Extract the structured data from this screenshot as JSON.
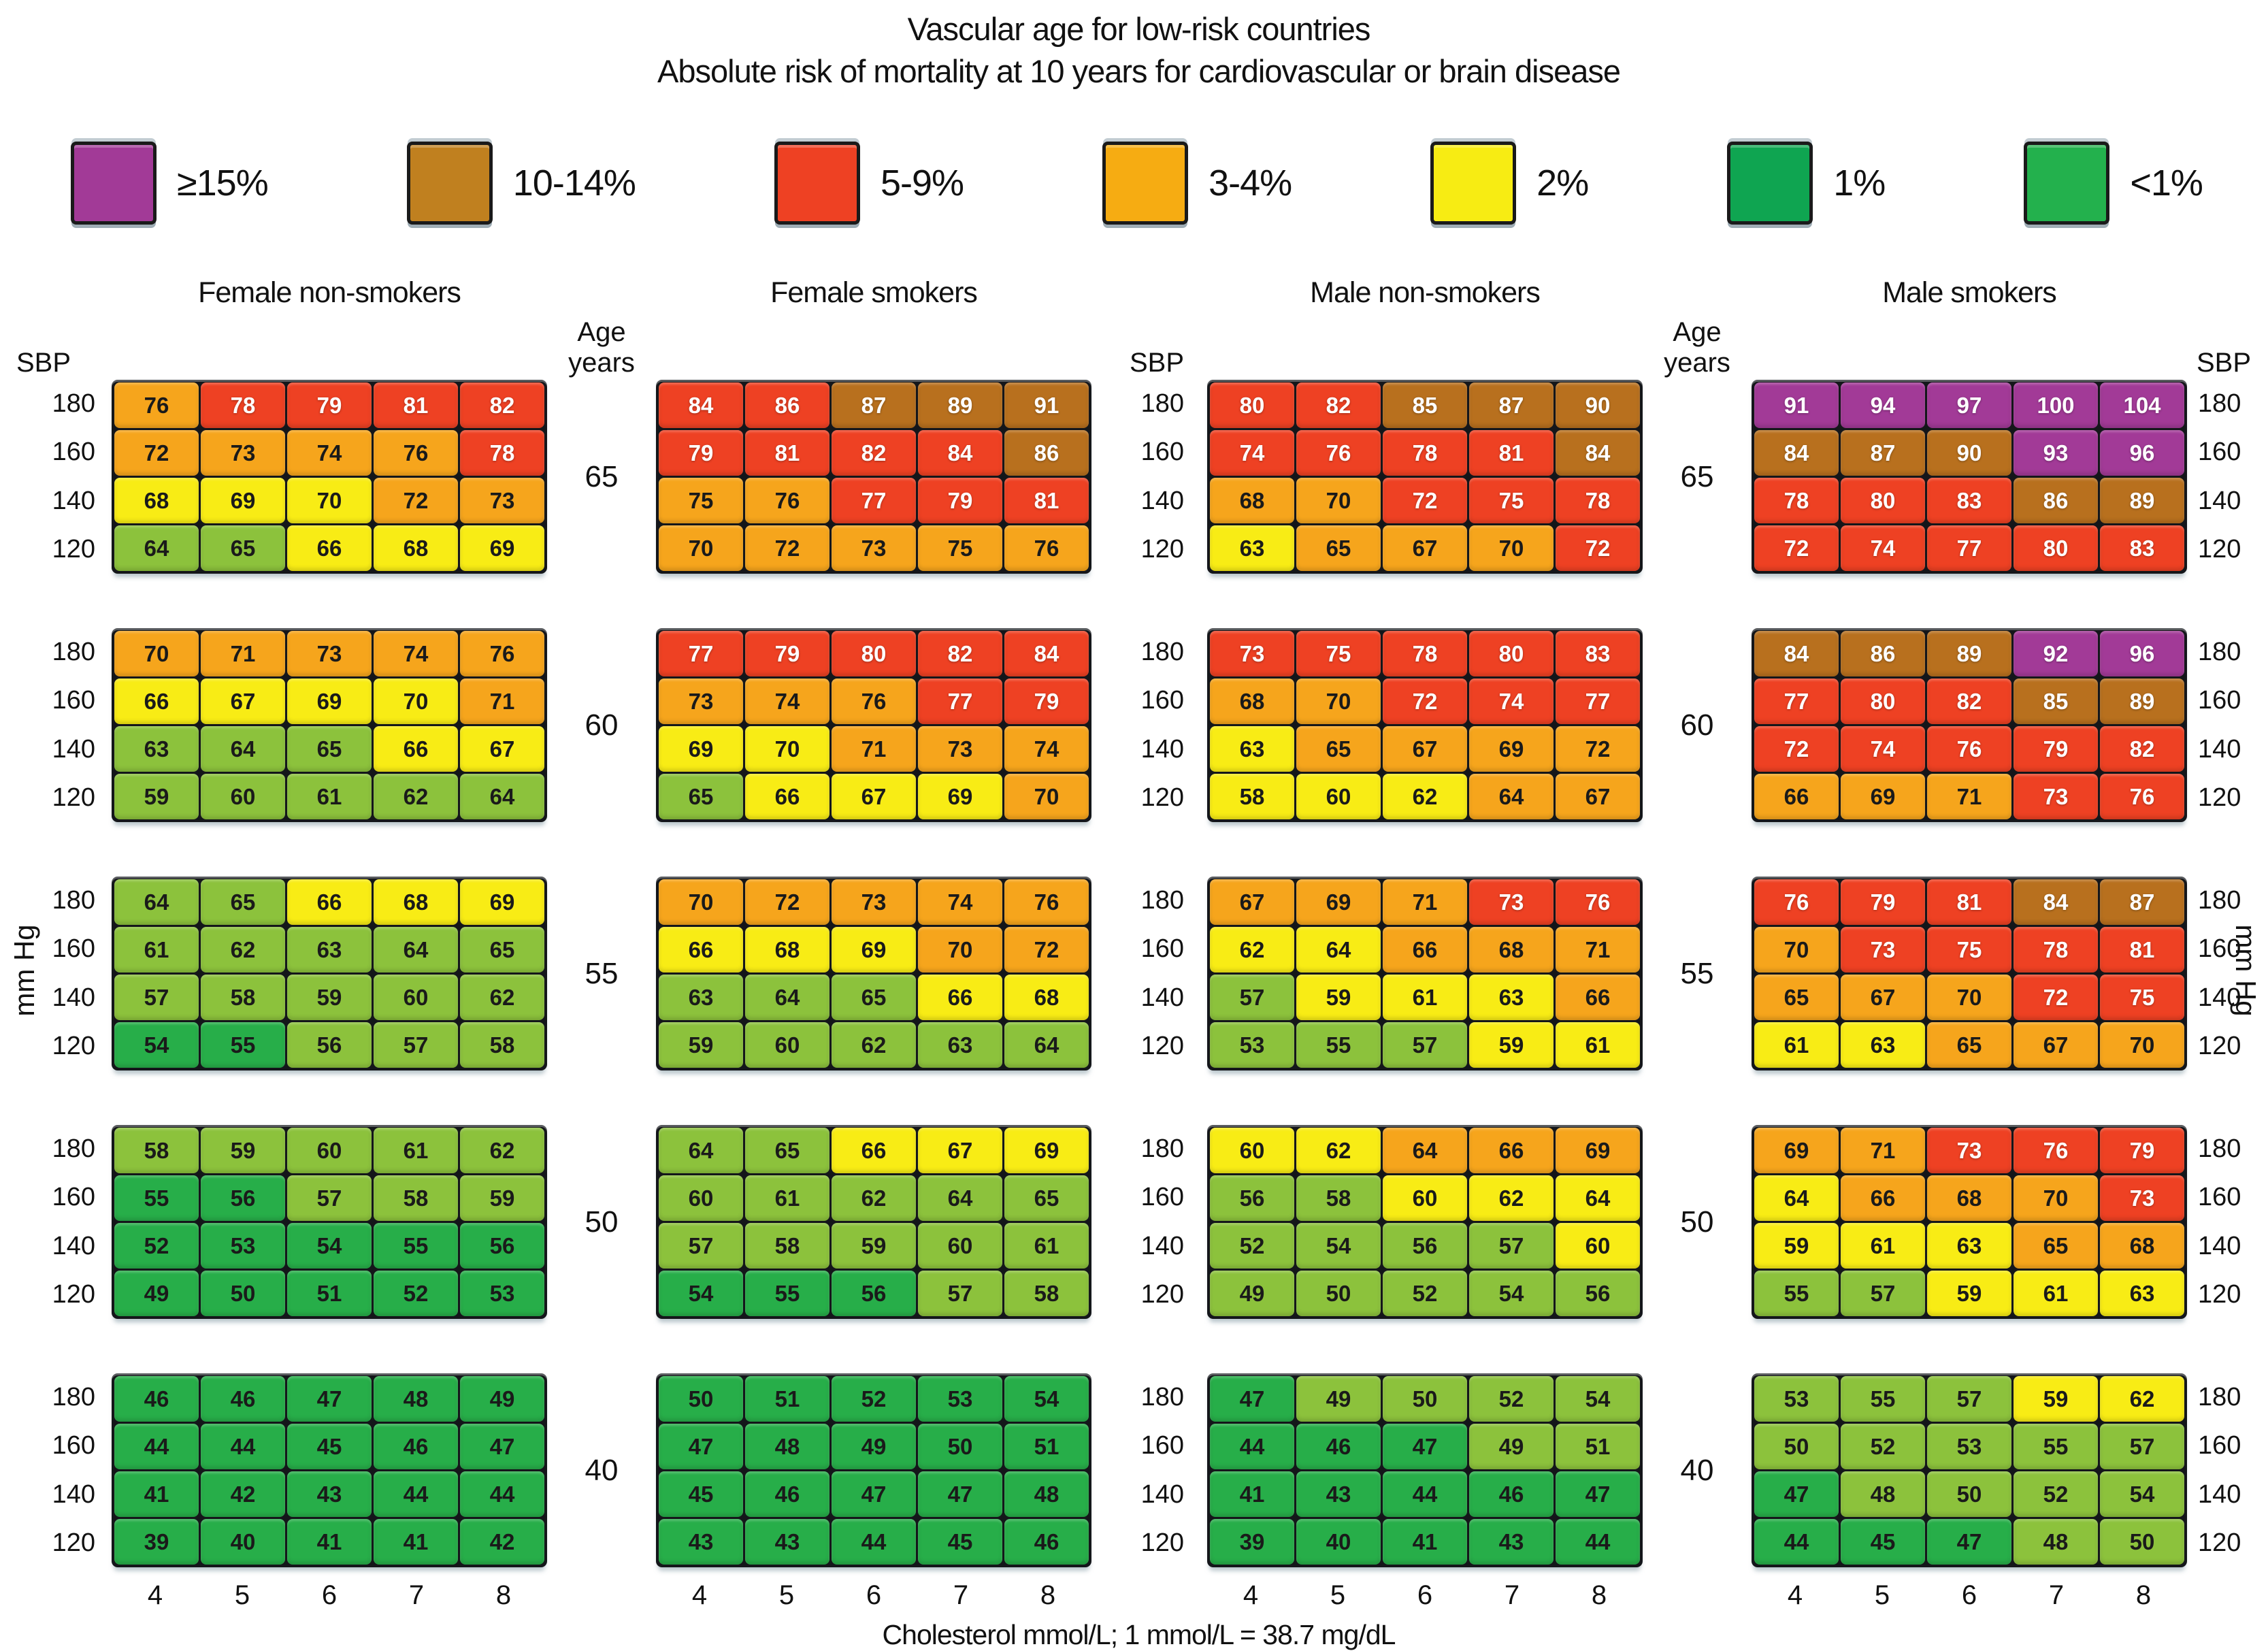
{
  "chart_data": {
    "type": "heatmap",
    "title": "Vascular age for low-risk countries",
    "subtitle": "Absolute risk of mortality at 10 years for cardiovascular or brain disease",
    "footer": "Cholesterol mmol/L; 1 mmol/L = 38.7 mg/dL",
    "legend_bins": [
      {
        "label": "≥15%",
        "key": "p",
        "color": "#A23A97"
      },
      {
        "label": "10-14%",
        "key": "b",
        "color": "#C0801F"
      },
      {
        "label": "5-9%",
        "key": "r",
        "color": "#EE4123"
      },
      {
        "label": "3-4%",
        "key": "o",
        "color": "#F6AC12"
      },
      {
        "label": "2%",
        "key": "y",
        "color": "#F7EC13"
      },
      {
        "label": "1%",
        "key": "g1",
        "color": "#0FA551"
      },
      {
        "label": "<1%",
        "key": "g0",
        "color": "#23B14D"
      }
    ],
    "cell_palette": {
      "p": {
        "bg": "#A23A97",
        "fg": "#FFFFFF"
      },
      "b": {
        "bg": "#B8701E",
        "fg": "#FFFFFF"
      },
      "r": {
        "bg": "#EE4123",
        "fg": "#FFFFFF"
      },
      "o": {
        "bg": "#F6A51C",
        "fg": "#1A1A1A"
      },
      "y": {
        "bg": "#F8EC15",
        "fg": "#1A1A1A"
      },
      "g": {
        "bg": "#8CC23C",
        "fg": "#1A1A1A"
      },
      "G": {
        "bg": "#27AE49",
        "fg": "#1A1A1A"
      }
    },
    "axes": {
      "sbp_header": "SBP",
      "age_header": [
        "Age",
        "years"
      ],
      "mmhg_label": "mm Hg",
      "sbp_ticks": [
        "180",
        "160",
        "140",
        "120"
      ],
      "ages": [
        "65",
        "60",
        "55",
        "50",
        "40"
      ],
      "cholesterol_ticks": [
        "4",
        "5",
        "6",
        "7",
        "8"
      ]
    },
    "panels": [
      {
        "name": "Female non-smokers",
        "blocks": [
          {
            "age": "65",
            "values": [
              [
                76,
                78,
                79,
                81,
                82
              ],
              [
                72,
                73,
                74,
                76,
                78
              ],
              [
                68,
                69,
                70,
                72,
                73
              ],
              [
                64,
                65,
                66,
                68,
                69
              ]
            ],
            "colors": [
              "orrrr",
              "oooor",
              "yyyoo",
              "ggyyy"
            ]
          },
          {
            "age": "60",
            "values": [
              [
                70,
                71,
                73,
                74,
                76
              ],
              [
                66,
                67,
                69,
                70,
                71
              ],
              [
                63,
                64,
                65,
                66,
                67
              ],
              [
                59,
                60,
                61,
                62,
                64
              ]
            ],
            "colors": [
              "ooooo",
              "yyyyo",
              "gggyy",
              "ggggg"
            ]
          },
          {
            "age": "55",
            "values": [
              [
                64,
                65,
                66,
                68,
                69
              ],
              [
                61,
                62,
                63,
                64,
                65
              ],
              [
                57,
                58,
                59,
                60,
                62
              ],
              [
                54,
                55,
                56,
                57,
                58
              ]
            ],
            "colors": [
              "ggyyy",
              "ggggg",
              "ggggg",
              "GGggg"
            ]
          },
          {
            "age": "50",
            "values": [
              [
                58,
                59,
                60,
                61,
                62
              ],
              [
                55,
                56,
                57,
                58,
                59
              ],
              [
                52,
                53,
                54,
                55,
                56
              ],
              [
                49,
                50,
                51,
                52,
                53
              ]
            ],
            "colors": [
              "ggggg",
              "GGggg",
              "GGGGG",
              "GGGGG"
            ]
          },
          {
            "age": "40",
            "values": [
              [
                46,
                46,
                47,
                48,
                49
              ],
              [
                44,
                44,
                45,
                46,
                47
              ],
              [
                41,
                42,
                43,
                44,
                44
              ],
              [
                39,
                40,
                41,
                41,
                42
              ]
            ],
            "colors": [
              "GGGGG",
              "GGGGG",
              "GGGGG",
              "GGGGG"
            ]
          }
        ]
      },
      {
        "name": "Female smokers",
        "blocks": [
          {
            "age": "65",
            "values": [
              [
                84,
                86,
                87,
                89,
                91
              ],
              [
                79,
                81,
                82,
                84,
                86
              ],
              [
                75,
                76,
                77,
                79,
                81
              ],
              [
                70,
                72,
                73,
                75,
                76
              ]
            ],
            "colors": [
              "rrbbb",
              "rrrrb",
              "oorrr",
              "ooooo"
            ]
          },
          {
            "age": "60",
            "values": [
              [
                77,
                79,
                80,
                82,
                84
              ],
              [
                73,
                74,
                76,
                77,
                79
              ],
              [
                69,
                70,
                71,
                73,
                74
              ],
              [
                65,
                66,
                67,
                69,
                70
              ]
            ],
            "colors": [
              "rrrrr",
              "ooorr",
              "yyooo",
              "gyyyo"
            ]
          },
          {
            "age": "55",
            "values": [
              [
                70,
                72,
                73,
                74,
                76
              ],
              [
                66,
                68,
                69,
                70,
                72
              ],
              [
                63,
                64,
                65,
                66,
                68
              ],
              [
                59,
                60,
                62,
                63,
                64
              ]
            ],
            "colors": [
              "ooooo",
              "yyyoo",
              "gggyy",
              "ggggg"
            ]
          },
          {
            "age": "50",
            "values": [
              [
                64,
                65,
                66,
                67,
                69
              ],
              [
                60,
                61,
                62,
                64,
                65
              ],
              [
                57,
                58,
                59,
                60,
                61
              ],
              [
                54,
                55,
                56,
                57,
                58
              ]
            ],
            "colors": [
              "ggyyy",
              "ggggg",
              "ggggg",
              "GGGgg"
            ]
          },
          {
            "age": "40",
            "values": [
              [
                50,
                51,
                52,
                53,
                54
              ],
              [
                47,
                48,
                49,
                50,
                51
              ],
              [
                45,
                46,
                47,
                47,
                48
              ],
              [
                43,
                43,
                44,
                45,
                46
              ]
            ],
            "colors": [
              "GGGGG",
              "GGGGG",
              "GGGGG",
              "GGGGG"
            ]
          }
        ]
      },
      {
        "name": "Male non-smokers",
        "blocks": [
          {
            "age": "65",
            "values": [
              [
                80,
                82,
                85,
                87,
                90
              ],
              [
                74,
                76,
                78,
                81,
                84
              ],
              [
                68,
                70,
                72,
                75,
                78
              ],
              [
                63,
                65,
                67,
                70,
                72
              ]
            ],
            "colors": [
              "rrbbb",
              "rrrrb",
              "oorrr",
              "yooor"
            ]
          },
          {
            "age": "60",
            "values": [
              [
                73,
                75,
                78,
                80,
                83
              ],
              [
                68,
                70,
                72,
                74,
                77
              ],
              [
                63,
                65,
                67,
                69,
                72
              ],
              [
                58,
                60,
                62,
                64,
                67
              ]
            ],
            "colors": [
              "rrrrr",
              "oorrr",
              "yoooo",
              "yyyoo"
            ]
          },
          {
            "age": "55",
            "values": [
              [
                67,
                69,
                71,
                73,
                76
              ],
              [
                62,
                64,
                66,
                68,
                71
              ],
              [
                57,
                59,
                61,
                63,
                66
              ],
              [
                53,
                55,
                57,
                59,
                61
              ]
            ],
            "colors": [
              "ooorr",
              "yyooo",
              "gyyyo",
              "gggyy"
            ]
          },
          {
            "age": "50",
            "values": [
              [
                60,
                62,
                64,
                66,
                69
              ],
              [
                56,
                58,
                60,
                62,
                64
              ],
              [
                52,
                54,
                56,
                57,
                60
              ],
              [
                49,
                50,
                52,
                54,
                56
              ]
            ],
            "colors": [
              "yyooo",
              "ggyyy",
              "ggggy",
              "ggggg"
            ]
          },
          {
            "age": "40",
            "values": [
              [
                47,
                49,
                50,
                52,
                54
              ],
              [
                44,
                46,
                47,
                49,
                51
              ],
              [
                41,
                43,
                44,
                46,
                47
              ],
              [
                39,
                40,
                41,
                43,
                44
              ]
            ],
            "colors": [
              "Ggggg",
              "GGGgg",
              "GGGGG",
              "GGGGG"
            ]
          }
        ]
      },
      {
        "name": "Male smokers",
        "blocks": [
          {
            "age": "65",
            "values": [
              [
                91,
                94,
                97,
                100,
                104
              ],
              [
                84,
                87,
                90,
                93,
                96
              ],
              [
                78,
                80,
                83,
                86,
                89
              ],
              [
                72,
                74,
                77,
                80,
                83
              ]
            ],
            "colors": [
              "ppppp",
              "bbbpp",
              "rrrbb",
              "rrrrr"
            ]
          },
          {
            "age": "60",
            "values": [
              [
                84,
                86,
                89,
                92,
                96
              ],
              [
                77,
                80,
                82,
                85,
                89
              ],
              [
                72,
                74,
                76,
                79,
                82
              ],
              [
                66,
                69,
                71,
                73,
                76
              ]
            ],
            "colors": [
              "bbbpp",
              "rrrbb",
              "rrrrr",
              "ooorr"
            ]
          },
          {
            "age": "55",
            "values": [
              [
                76,
                79,
                81,
                84,
                87
              ],
              [
                70,
                73,
                75,
                78,
                81
              ],
              [
                65,
                67,
                70,
                72,
                75
              ],
              [
                61,
                63,
                65,
                67,
                70
              ]
            ],
            "colors": [
              "rrrbb",
              "orrrr",
              "ooorr",
              "yyooo"
            ]
          },
          {
            "age": "50",
            "values": [
              [
                69,
                71,
                73,
                76,
                79
              ],
              [
                64,
                66,
                68,
                70,
                73
              ],
              [
                59,
                61,
                63,
                65,
                68
              ],
              [
                55,
                57,
                59,
                61,
                63
              ]
            ],
            "colors": [
              "oorrr",
              "yooor",
              "yyyoo",
              "ggyyy"
            ]
          },
          {
            "age": "40",
            "values": [
              [
                53,
                55,
                57,
                59,
                62
              ],
              [
                50,
                52,
                53,
                55,
                57
              ],
              [
                47,
                48,
                50,
                52,
                54
              ],
              [
                44,
                45,
                47,
                48,
                50
              ]
            ],
            "colors": [
              "gggyy",
              "ggggg",
              "Ggggg",
              "GGGgg"
            ]
          }
        ]
      }
    ]
  }
}
